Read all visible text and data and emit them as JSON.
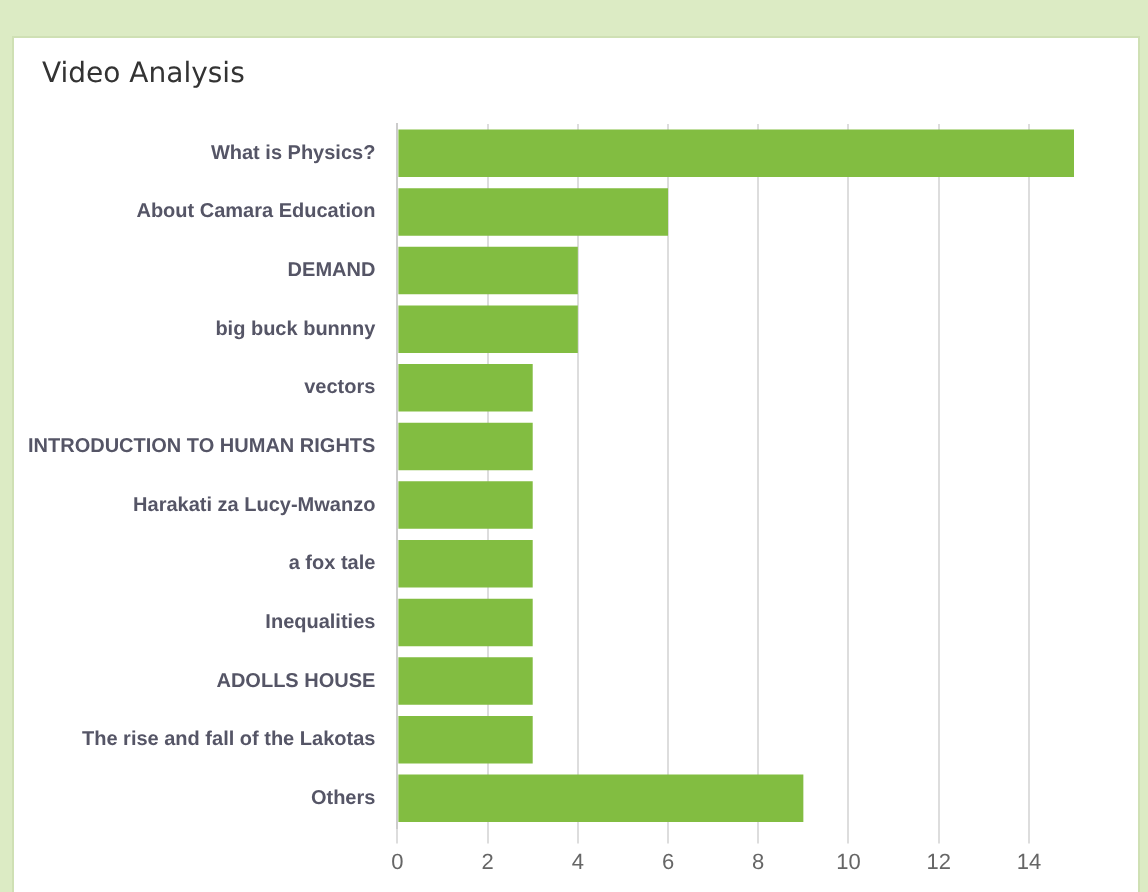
{
  "chart_data": {
    "type": "bar",
    "title": "Video Analysis",
    "orientation": "horizontal",
    "categories": [
      "What is Physics?",
      "About Camara Education",
      "DEMAND",
      "big buck bunnny",
      "vectors",
      "INTRODUCTION TO HUMAN RIGHTS",
      "Harakati za Lucy-Mwanzo",
      "a fox tale",
      "Inequalities",
      "ADOLLS HOUSE",
      "The rise and fall of the Lakotas",
      "Others"
    ],
    "values": [
      15,
      6,
      4,
      4,
      3,
      3,
      3,
      3,
      3,
      3,
      3,
      9
    ],
    "color": "#82bd41",
    "xlim": [
      0,
      15
    ],
    "xticks": [
      0,
      2,
      4,
      6,
      8,
      10,
      12,
      14
    ],
    "grid": "x"
  }
}
